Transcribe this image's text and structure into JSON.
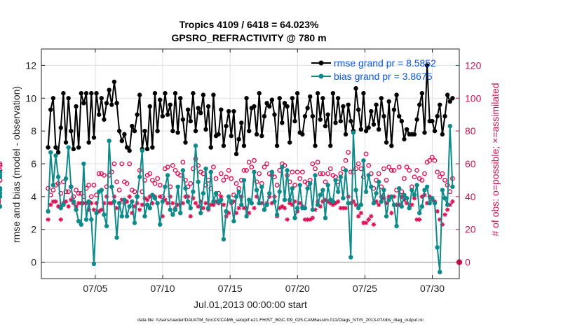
{
  "chart_data": {
    "type": "line",
    "title_line1": "Tropics 4109 / 6418 = 64.023%",
    "title_line2": "GPSRO_REFRACTIVITY @ 780 m",
    "xlabel": "Jul.01,2013 00:00:00 start",
    "ylabel": "rmse and bias (model - observation)",
    "ylabel_right": "# of obs: o=possible; ×=assimilated",
    "footnote": "data file: /Users/raeder/DAI/ATM_forcXX/CAM6_setup/f.e21.FHIST_BGC.f09_025.CAM6assim.011/Diags_NTrS_2013-07/obs_diag_output.nc",
    "x_range": [
      1,
      32
    ],
    "ylim": [
      -1,
      13
    ],
    "ylim_right": [
      -10,
      130
    ],
    "x_ticks": [
      5,
      10,
      15,
      20,
      25,
      30
    ],
    "x_tick_labels": [
      "07/05",
      "07/10",
      "07/15",
      "07/20",
      "07/25",
      "07/30"
    ],
    "y_ticks": [
      0,
      2,
      4,
      6,
      8,
      10,
      12
    ],
    "y_tick_labels": [
      "0",
      "2",
      "4",
      "6",
      "8",
      "10",
      "12"
    ],
    "y_ticks_right": [
      0,
      20,
      40,
      60,
      80,
      100,
      120
    ],
    "y_tick_labels_right": [
      "0",
      "20",
      "40",
      "60",
      "80",
      "100",
      "120"
    ],
    "legend": [
      {
        "label": "rmse grand pr = 8.5852",
        "color": "#000000"
      },
      {
        "label": "bias grand pr = 3.8675",
        "color": "#0e8a8a"
      }
    ],
    "colors": {
      "rmse": "#000000",
      "bias": "#0e8a8a",
      "obs": "#dd1155",
      "zero_line": "#b0b0b0"
    },
    "series": [
      {
        "name": "rmse",
        "values": [
          7.0,
          9.3,
          10.0,
          7.0,
          6.7,
          8.2,
          10.3,
          7.3,
          10.0,
          8.0,
          6.9,
          9.5,
          7.0,
          10.3,
          9.7,
          10.3,
          7.3,
          10.3,
          7.6,
          10.3,
          9.0,
          10.0,
          8.7,
          9.7,
          10.5,
          9.6,
          11.0,
          9.7,
          8.0,
          7.4,
          7.8,
          7.0,
          6.8,
          8.3,
          8.0,
          9.0,
          10.2,
          6.9,
          8.0,
          6.9,
          9.5,
          7.0,
          10.3,
          8.0,
          9.9,
          8.9,
          10.3,
          9.0,
          9.6,
          8.0,
          10.3,
          7.9,
          10.0,
          8.7,
          7.3,
          9.3,
          8.6,
          10.3,
          8.0,
          9.4,
          9.1,
          10.2,
          8.1,
          9.5,
          7.0,
          10.2,
          7.7,
          7.8,
          9.3,
          7.1,
          8.3,
          9.2,
          7.7,
          9.2,
          6.6,
          7.5,
          8.5,
          7.1,
          10.0,
          8.0,
          9.4,
          9.5,
          7.8,
          10.3,
          7.7,
          8.9,
          9.7,
          9.5,
          9.9,
          9.0,
          7.1,
          10.0,
          8.5,
          9.7,
          9.5,
          7.3,
          10.0,
          8.6,
          10.3,
          7.9,
          7.8,
          8.9,
          9.4,
          10.1,
          8.9,
          7.1,
          10.3,
          8.7,
          10.0,
          8.3,
          9.0,
          7.1,
          10.3,
          8.5,
          10.0,
          8.6,
          9.5,
          7.8,
          9.6,
          8.6,
          8.0,
          10.6,
          9.3,
          8.1,
          10.3,
          8.0,
          8.2,
          9.2,
          8.4,
          9.6,
          8.1,
          10.0,
          8.9,
          7.3,
          9.8,
          7.1,
          9.3,
          10.2,
          8.9,
          8.6,
          7.5,
          8.1,
          7.8,
          7.8,
          7.8,
          8.7,
          9.6,
          10.3,
          7.9,
          12.0,
          8.6,
          8.6,
          8.0,
          8.9,
          9.6,
          7.8,
          8.9,
          10.2,
          9.8,
          10.0
        ]
      },
      {
        "name": "bias",
        "values": [
          3.1,
          6.7,
          4.7,
          6.5,
          5.2,
          3.3,
          3.5,
          5.1,
          7.0,
          4.6,
          3.7,
          3.2,
          2.5,
          2.3,
          6.0,
          2.6,
          3.7,
          2.6,
          -0.1,
          3.0,
          4.3,
          4.4,
          2.9,
          2.2,
          7.4,
          4.6,
          3.7,
          1.5,
          3.6,
          2.8,
          3.8,
          2.8,
          3.4,
          3.7,
          2.4,
          4.0,
          5.2,
          6.8,
          2.8,
          3.5,
          3.3,
          4.1,
          3.9,
          3.6,
          2.3,
          3.7,
          4.6,
          5.3,
          3.2,
          2.9,
          3.2,
          4.6,
          3.0,
          5.6,
          4.5,
          3.7,
          3.3,
          4.3,
          7.1,
          4.9,
          3.0,
          4.2,
          5.7,
          3.3,
          5.5,
          3.7,
          4.2,
          3.7,
          3.8,
          1.4,
          3.1,
          4.0,
          3.7,
          2.5,
          4.0,
          4.3,
          3.5,
          5.0,
          2.8,
          3.8,
          3.6,
          5.5,
          4.4,
          3.6,
          4.6,
          3.2,
          3.5,
          4.2,
          5.5,
          3.7,
          2.9,
          4.3,
          5.8,
          3.8,
          5.6,
          3.8,
          4.5,
          2.7,
          3.3,
          4.7,
          3.3,
          3.3,
          4.5,
          4.8,
          3.2,
          5.3,
          3.5,
          4.1,
          4.4,
          2.7,
          4.7,
          3.8,
          3.7,
          5.0,
          4.3,
          5.2,
          3.9,
          5.6,
          3.6,
          0.3,
          7.9,
          4.4,
          3.3,
          3.5,
          6.2,
          4.3,
          5.3,
          4.6,
          3.6,
          4.2,
          4.9,
          3.7,
          4.4,
          2.8,
          3.8,
          4.0,
          3.5,
          2.2,
          4.5,
          3.4,
          4.1,
          3.9,
          3.3,
          4.4,
          4.1,
          4.7,
          3.0,
          3.4,
          4.4,
          4.6,
          3.6,
          3.9,
          3.6,
          0.9,
          -0.6,
          4.4,
          3.9,
          3.5,
          8.3,
          4.6,
          3.4,
          5.5,
          4.4,
          4.0,
          4.5,
          5.2,
          4.2,
          5.5,
          5.3,
          4.5
        ]
      },
      {
        "name": "possible_obs",
        "values": [
          45,
          41,
          44,
          47,
          48,
          42,
          49,
          43,
          43,
          46,
          40,
          44,
          42,
          42,
          40,
          45,
          47,
          40,
          47,
          41,
          54,
          54,
          53,
          46,
          53,
          55,
          60,
          49,
          44,
          60,
          49,
          48,
          60,
          44,
          43,
          40,
          56,
          43,
          50,
          53,
          54,
          50,
          48,
          51,
          47,
          40,
          57,
          58,
          46,
          59,
          56,
          54,
          53,
          61,
          50,
          46,
          48,
          57,
          63,
          59,
          55,
          54,
          47,
          50,
          45,
          58,
          51,
          42,
          54,
          50,
          52,
          56,
          51,
          41,
          48,
          45,
          50,
          56,
          56,
          61,
          58,
          62,
          49,
          54,
          48,
          58,
          60,
          54,
          53,
          52,
          47,
          56,
          60,
          59,
          53,
          49,
          55,
          47,
          55,
          51,
          55,
          49,
          48,
          50,
          60,
          57,
          61,
          54,
          54,
          49,
          54,
          57,
          53,
          52,
          49,
          54,
          57,
          62,
          67,
          55,
          55,
          57,
          60,
          57,
          52,
          66,
          59,
          54,
          45,
          50,
          54,
          46,
          57,
          50,
          58,
          56,
          56,
          44,
          58,
          43,
          51,
          58,
          56,
          46,
          52,
          56,
          51,
          50,
          54,
          61,
          62,
          64,
          62,
          55,
          52,
          54,
          50,
          47,
          43,
          51,
          50,
          59,
          50,
          59,
          56,
          60
        ]
      },
      {
        "name": "assimilated_obs",
        "values": [
          26,
          35,
          37,
          37,
          34,
          26,
          36,
          37,
          34,
          38,
          36,
          34,
          36,
          36,
          36,
          36,
          32,
          36,
          32,
          36,
          31,
          32,
          36,
          40,
          36,
          36,
          40,
          33,
          36,
          38,
          36,
          37,
          40,
          30,
          34,
          36,
          32,
          35,
          39,
          38,
          40,
          36,
          40,
          36,
          40,
          28,
          38,
          36,
          40,
          36,
          33,
          35,
          30,
          36,
          40,
          40,
          28,
          39,
          36,
          34,
          37,
          33,
          36,
          32,
          35,
          35,
          37,
          36,
          40,
          35,
          28,
          30,
          36,
          37,
          30,
          33,
          40,
          33,
          33,
          30,
          36,
          33,
          40,
          36,
          36,
          32,
          36,
          40,
          36,
          40,
          28,
          33,
          34,
          33,
          26,
          36,
          35,
          37,
          31,
          36,
          34,
          26,
          26,
          26,
          27,
          32,
          37,
          34,
          37,
          38,
          37,
          36,
          35,
          36,
          37,
          33,
          33,
          33,
          40,
          36,
          37,
          35,
          28,
          30,
          24,
          24,
          26,
          28,
          23,
          37,
          35,
          40,
          39,
          36,
          40,
          30,
          40,
          35,
          35,
          40,
          38,
          36,
          33,
          35,
          39,
          26,
          26,
          40,
          41,
          36,
          40,
          38,
          37,
          31,
          26,
          23,
          29,
          32,
          35,
          37,
          37,
          34,
          41,
          36,
          38,
          40
        ]
      }
    ]
  }
}
